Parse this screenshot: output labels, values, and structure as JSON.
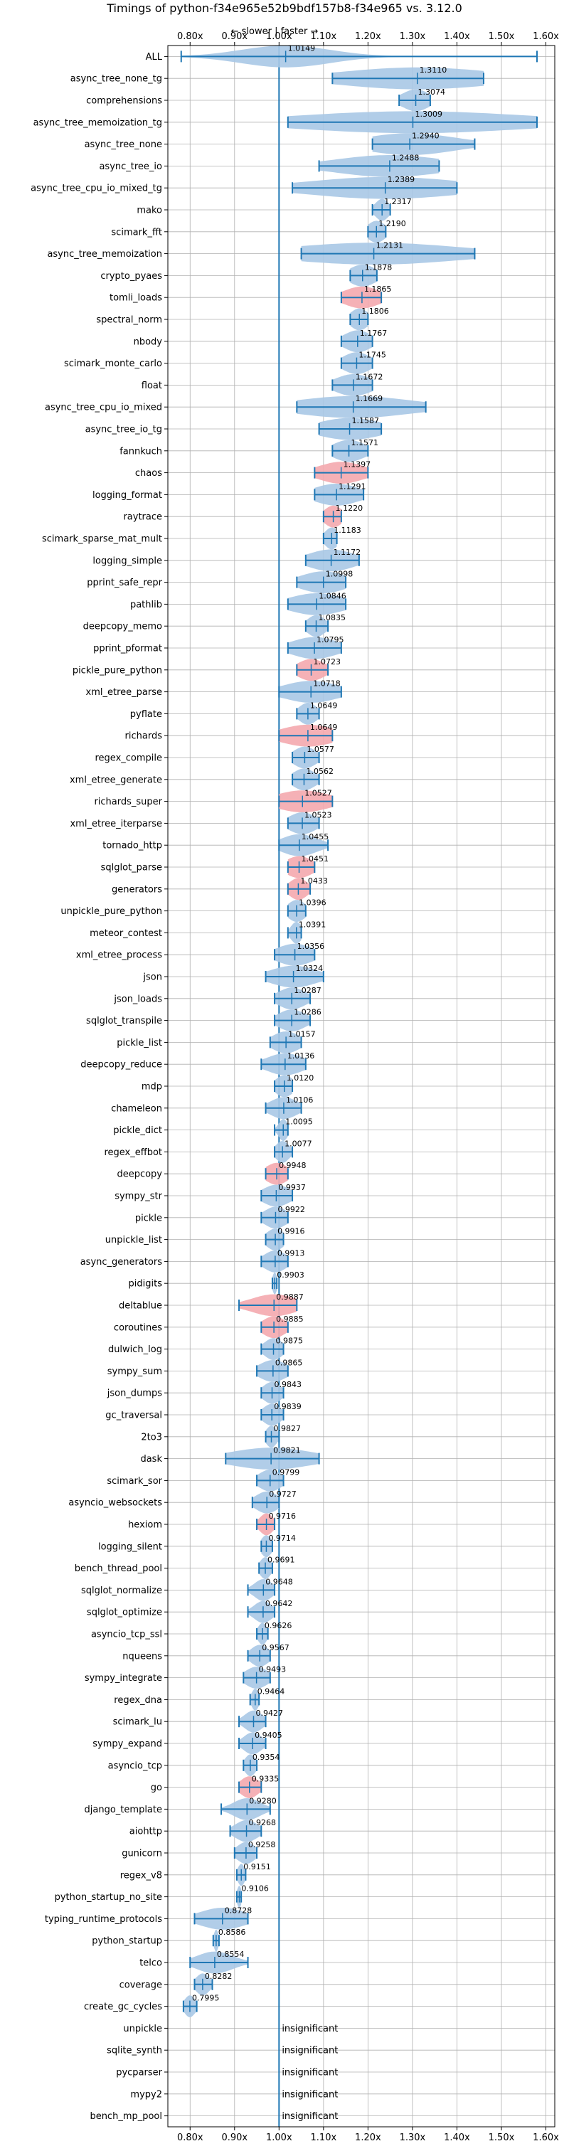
{
  "chart_data": {
    "type": "violin",
    "title": "Timings of python-f34e965e52b9bdf157b8-f34e965 vs. 3.12.0",
    "subtitle": "← slower | faster →",
    "xlim": [
      0.75,
      1.62
    ],
    "xticks": [
      0.8,
      0.9,
      1.0,
      1.1,
      1.2,
      1.3,
      1.4,
      1.5,
      1.6
    ],
    "xtick_labels": [
      "0.80x",
      "0.90x",
      "1.00x",
      "1.10x",
      "1.20x",
      "1.30x",
      "1.40x",
      "1.50x",
      "1.60x"
    ],
    "reference_line": 1.0,
    "grid": true,
    "colors": {
      "faster": "#a8c8e6",
      "slower": "#f4a9ae",
      "errorbar": "#1f77b4",
      "reference": "#1f77b4",
      "grid": "#b0b0b0"
    },
    "insignificant_label": "insignificant",
    "benchmarks": [
      {
        "name": "ALL",
        "value": 1.0149,
        "label": "1.0149",
        "lo": 0.78,
        "hi": 1.58,
        "spread": 0.1,
        "color": "faster"
      },
      {
        "name": "async_tree_none_tg",
        "value": 1.311,
        "label": "1.3110",
        "lo": 1.12,
        "hi": 1.46,
        "spread": 0.17,
        "color": "faster"
      },
      {
        "name": "comprehensions",
        "value": 1.3074,
        "label": "1.3074",
        "lo": 1.27,
        "hi": 1.34,
        "spread": 0.03,
        "color": "faster"
      },
      {
        "name": "async_tree_memoization_tg",
        "value": 1.3009,
        "label": "1.3009",
        "lo": 1.02,
        "hi": 1.58,
        "spread": 0.26,
        "color": "faster"
      },
      {
        "name": "async_tree_none",
        "value": 1.294,
        "label": "1.2940",
        "lo": 1.21,
        "hi": 1.44,
        "spread": 0.1,
        "color": "faster"
      },
      {
        "name": "async_tree_io",
        "value": 1.2488,
        "label": "1.2488",
        "lo": 1.09,
        "hi": 1.36,
        "spread": 0.12,
        "color": "faster"
      },
      {
        "name": "async_tree_cpu_io_mixed_tg",
        "value": 1.2389,
        "label": "1.2389",
        "lo": 1.03,
        "hi": 1.4,
        "spread": 0.17,
        "color": "faster"
      },
      {
        "name": "mako",
        "value": 1.2317,
        "label": "1.2317",
        "lo": 1.21,
        "hi": 1.25,
        "spread": 0.015,
        "color": "faster"
      },
      {
        "name": "scimark_fft",
        "value": 1.219,
        "label": "1.2190",
        "lo": 1.2,
        "hi": 1.24,
        "spread": 0.02,
        "color": "faster"
      },
      {
        "name": "async_tree_memoization",
        "value": 1.2131,
        "label": "1.2131",
        "lo": 1.05,
        "hi": 1.44,
        "spread": 0.19,
        "color": "faster"
      },
      {
        "name": "crypto_pyaes",
        "value": 1.1878,
        "label": "1.1878",
        "lo": 1.16,
        "hi": 1.22,
        "spread": 0.03,
        "color": "faster"
      },
      {
        "name": "tomli_loads",
        "value": 1.1865,
        "label": "1.1865",
        "lo": 1.14,
        "hi": 1.23,
        "spread": 0.04,
        "color": "slower"
      },
      {
        "name": "spectral_norm",
        "value": 1.1806,
        "label": "1.1806",
        "lo": 1.16,
        "hi": 1.2,
        "spread": 0.02,
        "color": "faster"
      },
      {
        "name": "nbody",
        "value": 1.1767,
        "label": "1.1767",
        "lo": 1.14,
        "hi": 1.21,
        "spread": 0.03,
        "color": "faster"
      },
      {
        "name": "scimark_monte_carlo",
        "value": 1.1745,
        "label": "1.1745",
        "lo": 1.14,
        "hi": 1.21,
        "spread": 0.03,
        "color": "faster"
      },
      {
        "name": "float",
        "value": 1.1672,
        "label": "1.1672",
        "lo": 1.12,
        "hi": 1.21,
        "spread": 0.04,
        "color": "faster"
      },
      {
        "name": "async_tree_cpu_io_mixed",
        "value": 1.1669,
        "label": "1.1669",
        "lo": 1.04,
        "hi": 1.33,
        "spread": 0.13,
        "color": "faster"
      },
      {
        "name": "async_tree_io_tg",
        "value": 1.1587,
        "label": "1.1587",
        "lo": 1.09,
        "hi": 1.23,
        "spread": 0.07,
        "color": "faster"
      },
      {
        "name": "fannkuch",
        "value": 1.1571,
        "label": "1.1571",
        "lo": 1.12,
        "hi": 1.2,
        "spread": 0.035,
        "color": "faster"
      },
      {
        "name": "chaos",
        "value": 1.1397,
        "label": "1.1397",
        "lo": 1.08,
        "hi": 1.2,
        "spread": 0.05,
        "color": "slower"
      },
      {
        "name": "logging_format",
        "value": 1.1291,
        "label": "1.1291",
        "lo": 1.08,
        "hi": 1.19,
        "spread": 0.05,
        "color": "faster"
      },
      {
        "name": "raytrace",
        "value": 1.122,
        "label": "1.1220",
        "lo": 1.1,
        "hi": 1.14,
        "spread": 0.02,
        "color": "slower"
      },
      {
        "name": "scimark_sparse_mat_mult",
        "value": 1.1183,
        "label": "1.1183",
        "lo": 1.1,
        "hi": 1.13,
        "spread": 0.015,
        "color": "faster"
      },
      {
        "name": "logging_simple",
        "value": 1.1172,
        "label": "1.1172",
        "lo": 1.06,
        "hi": 1.18,
        "spread": 0.05,
        "color": "faster"
      },
      {
        "name": "pprint_safe_repr",
        "value": 1.0998,
        "label": "1.0998",
        "lo": 1.04,
        "hi": 1.15,
        "spread": 0.05,
        "color": "faster"
      },
      {
        "name": "pathlib",
        "value": 1.0846,
        "label": "1.0846",
        "lo": 1.02,
        "hi": 1.15,
        "spread": 0.06,
        "color": "faster"
      },
      {
        "name": "deepcopy_memo",
        "value": 1.0835,
        "label": "1.0835",
        "lo": 1.06,
        "hi": 1.11,
        "spread": 0.02,
        "color": "faster"
      },
      {
        "name": "pprint_pformat",
        "value": 1.0795,
        "label": "1.0795",
        "lo": 1.02,
        "hi": 1.14,
        "spread": 0.05,
        "color": "faster"
      },
      {
        "name": "pickle_pure_python",
        "value": 1.0723,
        "label": "1.0723",
        "lo": 1.04,
        "hi": 1.11,
        "spread": 0.03,
        "color": "slower"
      },
      {
        "name": "xml_etree_parse",
        "value": 1.0718,
        "label": "1.0718",
        "lo": 1.0,
        "hi": 1.14,
        "spread": 0.06,
        "color": "faster"
      },
      {
        "name": "pyflate",
        "value": 1.0649,
        "label": "1.0649",
        "lo": 1.04,
        "hi": 1.09,
        "spread": 0.02,
        "color": "faster"
      },
      {
        "name": "richards",
        "value": 1.0649,
        "label": "1.0649",
        "lo": 1.0,
        "hi": 1.12,
        "spread": 0.06,
        "color": "slower"
      },
      {
        "name": "regex_compile",
        "value": 1.0577,
        "label": "1.0577",
        "lo": 1.03,
        "hi": 1.09,
        "spread": 0.025,
        "color": "faster"
      },
      {
        "name": "xml_etree_generate",
        "value": 1.0562,
        "label": "1.0562",
        "lo": 1.03,
        "hi": 1.09,
        "spread": 0.025,
        "color": "faster"
      },
      {
        "name": "richards_super",
        "value": 1.0527,
        "label": "1.0527",
        "lo": 1.0,
        "hi": 1.12,
        "spread": 0.06,
        "color": "slower"
      },
      {
        "name": "xml_etree_iterparse",
        "value": 1.0523,
        "label": "1.0523",
        "lo": 1.02,
        "hi": 1.09,
        "spread": 0.03,
        "color": "faster"
      },
      {
        "name": "tornado_http",
        "value": 1.0455,
        "label": "1.0455",
        "lo": 1.0,
        "hi": 1.11,
        "spread": 0.04,
        "color": "faster"
      },
      {
        "name": "sqlglot_parse",
        "value": 1.0451,
        "label": "1.0451",
        "lo": 1.02,
        "hi": 1.08,
        "spread": 0.03,
        "color": "slower"
      },
      {
        "name": "generators",
        "value": 1.0433,
        "label": "1.0433",
        "lo": 1.02,
        "hi": 1.07,
        "spread": 0.02,
        "color": "slower"
      },
      {
        "name": "unpickle_pure_python",
        "value": 1.0396,
        "label": "1.0396",
        "lo": 1.02,
        "hi": 1.06,
        "spread": 0.02,
        "color": "faster"
      },
      {
        "name": "meteor_contest",
        "value": 1.0391,
        "label": "1.0391",
        "lo": 1.02,
        "hi": 1.05,
        "spread": 0.012,
        "color": "faster"
      },
      {
        "name": "xml_etree_process",
        "value": 1.0356,
        "label": "1.0356",
        "lo": 0.99,
        "hi": 1.08,
        "spread": 0.04,
        "color": "faster"
      },
      {
        "name": "json",
        "value": 1.0324,
        "label": "1.0324",
        "lo": 0.97,
        "hi": 1.1,
        "spread": 0.05,
        "color": "faster"
      },
      {
        "name": "json_loads",
        "value": 1.0287,
        "label": "1.0287",
        "lo": 0.99,
        "hi": 1.07,
        "spread": 0.03,
        "color": "faster"
      },
      {
        "name": "sqlglot_transpile",
        "value": 1.0286,
        "label": "1.0286",
        "lo": 0.99,
        "hi": 1.07,
        "spread": 0.03,
        "color": "faster"
      },
      {
        "name": "pickle_list",
        "value": 1.0157,
        "label": "1.0157",
        "lo": 0.98,
        "hi": 1.05,
        "spread": 0.03,
        "color": "faster"
      },
      {
        "name": "deepcopy_reduce",
        "value": 1.0136,
        "label": "1.0136",
        "lo": 0.96,
        "hi": 1.06,
        "spread": 0.04,
        "color": "faster"
      },
      {
        "name": "mdp",
        "value": 1.012,
        "label": "1.0120",
        "lo": 0.99,
        "hi": 1.03,
        "spread": 0.02,
        "color": "faster"
      },
      {
        "name": "chameleon",
        "value": 1.0106,
        "label": "1.0106",
        "lo": 0.97,
        "hi": 1.05,
        "spread": 0.03,
        "color": "faster"
      },
      {
        "name": "pickle_dict",
        "value": 1.0095,
        "label": "1.0095",
        "lo": 0.99,
        "hi": 1.02,
        "spread": 0.01,
        "color": "faster"
      },
      {
        "name": "regex_effbot",
        "value": 1.0077,
        "label": "1.0077",
        "lo": 0.99,
        "hi": 1.03,
        "spread": 0.015,
        "color": "faster"
      },
      {
        "name": "deepcopy",
        "value": 0.9948,
        "label": "0.9948",
        "lo": 0.97,
        "hi": 1.02,
        "spread": 0.025,
        "color": "slower"
      },
      {
        "name": "sympy_str",
        "value": 0.9937,
        "label": "0.9937",
        "lo": 0.96,
        "hi": 1.03,
        "spread": 0.03,
        "color": "faster"
      },
      {
        "name": "pickle",
        "value": 0.9922,
        "label": "0.9922",
        "lo": 0.96,
        "hi": 1.02,
        "spread": 0.025,
        "color": "faster"
      },
      {
        "name": "unpickle_list",
        "value": 0.9916,
        "label": "0.9916",
        "lo": 0.97,
        "hi": 1.01,
        "spread": 0.02,
        "color": "faster"
      },
      {
        "name": "async_generators",
        "value": 0.9913,
        "label": "0.9913",
        "lo": 0.96,
        "hi": 1.02,
        "spread": 0.025,
        "color": "faster"
      },
      {
        "name": "pidigits",
        "value": 0.9903,
        "label": "0.9903",
        "lo": 0.985,
        "hi": 0.995,
        "spread": 0.005,
        "color": "faster"
      },
      {
        "name": "deltablue",
        "value": 0.9887,
        "label": "0.9887",
        "lo": 0.91,
        "hi": 1.04,
        "spread": 0.05,
        "color": "slower"
      },
      {
        "name": "coroutines",
        "value": 0.9885,
        "label": "0.9885",
        "lo": 0.96,
        "hi": 1.02,
        "spread": 0.025,
        "color": "slower"
      },
      {
        "name": "dulwich_log",
        "value": 0.9875,
        "label": "0.9875",
        "lo": 0.96,
        "hi": 1.01,
        "spread": 0.02,
        "color": "faster"
      },
      {
        "name": "sympy_sum",
        "value": 0.9865,
        "label": "0.9865",
        "lo": 0.95,
        "hi": 1.02,
        "spread": 0.03,
        "color": "faster"
      },
      {
        "name": "json_dumps",
        "value": 0.9843,
        "label": "0.9843",
        "lo": 0.96,
        "hi": 1.01,
        "spread": 0.02,
        "color": "faster"
      },
      {
        "name": "gc_traversal",
        "value": 0.9839,
        "label": "0.9839",
        "lo": 0.96,
        "hi": 1.01,
        "spread": 0.02,
        "color": "faster"
      },
      {
        "name": "2to3",
        "value": 0.9827,
        "label": "0.9827",
        "lo": 0.97,
        "hi": 1.0,
        "spread": 0.012,
        "color": "faster"
      },
      {
        "name": "dask",
        "value": 0.9821,
        "label": "0.9821",
        "lo": 0.88,
        "hi": 1.09,
        "spread": 0.09,
        "color": "faster"
      },
      {
        "name": "scimark_sor",
        "value": 0.9799,
        "label": "0.9799",
        "lo": 0.95,
        "hi": 1.01,
        "spread": 0.025,
        "color": "faster"
      },
      {
        "name": "asyncio_websockets",
        "value": 0.9727,
        "label": "0.9727",
        "lo": 0.94,
        "hi": 1.0,
        "spread": 0.025,
        "color": "faster"
      },
      {
        "name": "hexiom",
        "value": 0.9716,
        "label": "0.9716",
        "lo": 0.95,
        "hi": 0.99,
        "spread": 0.015,
        "color": "slower"
      },
      {
        "name": "logging_silent",
        "value": 0.9714,
        "label": "0.9714",
        "lo": 0.96,
        "hi": 0.985,
        "spread": 0.012,
        "color": "faster"
      },
      {
        "name": "bench_thread_pool",
        "value": 0.9691,
        "label": "0.9691",
        "lo": 0.955,
        "hi": 0.985,
        "spread": 0.012,
        "color": "faster"
      },
      {
        "name": "sqlglot_normalize",
        "value": 0.9648,
        "label": "0.9648",
        "lo": 0.93,
        "hi": 0.99,
        "spread": 0.02,
        "color": "faster"
      },
      {
        "name": "sqlglot_optimize",
        "value": 0.9642,
        "label": "0.9642",
        "lo": 0.93,
        "hi": 0.99,
        "spread": 0.02,
        "color": "faster"
      },
      {
        "name": "asyncio_tcp_ssl",
        "value": 0.9626,
        "label": "0.9626",
        "lo": 0.95,
        "hi": 0.975,
        "spread": 0.01,
        "color": "faster"
      },
      {
        "name": "nqueens",
        "value": 0.9567,
        "label": "0.9567",
        "lo": 0.93,
        "hi": 0.98,
        "spread": 0.02,
        "color": "faster"
      },
      {
        "name": "sympy_integrate",
        "value": 0.9493,
        "label": "0.9493",
        "lo": 0.92,
        "hi": 0.98,
        "spread": 0.025,
        "color": "faster"
      },
      {
        "name": "regex_dna",
        "value": 0.9464,
        "label": "0.9464",
        "lo": 0.935,
        "hi": 0.955,
        "spread": 0.008,
        "color": "faster"
      },
      {
        "name": "scimark_lu",
        "value": 0.9427,
        "label": "0.9427",
        "lo": 0.91,
        "hi": 0.97,
        "spread": 0.02,
        "color": "faster"
      },
      {
        "name": "sympy_expand",
        "value": 0.9405,
        "label": "0.9405",
        "lo": 0.91,
        "hi": 0.97,
        "spread": 0.02,
        "color": "faster"
      },
      {
        "name": "asyncio_tcp",
        "value": 0.9354,
        "label": "0.9354",
        "lo": 0.92,
        "hi": 0.95,
        "spread": 0.012,
        "color": "faster"
      },
      {
        "name": "go",
        "value": 0.9335,
        "label": "0.9335",
        "lo": 0.91,
        "hi": 0.96,
        "spread": 0.02,
        "color": "slower"
      },
      {
        "name": "django_template",
        "value": 0.928,
        "label": "0.9280",
        "lo": 0.87,
        "hi": 0.98,
        "spread": 0.03,
        "color": "faster"
      },
      {
        "name": "aiohttp",
        "value": 0.9268,
        "label": "0.9268",
        "lo": 0.89,
        "hi": 0.96,
        "spread": 0.025,
        "color": "faster"
      },
      {
        "name": "gunicorn",
        "value": 0.9258,
        "label": "0.9258",
        "lo": 0.9,
        "hi": 0.95,
        "spread": 0.02,
        "color": "faster"
      },
      {
        "name": "regex_v8",
        "value": 0.9151,
        "label": "0.9151",
        "lo": 0.905,
        "hi": 0.925,
        "spread": 0.008,
        "color": "faster"
      },
      {
        "name": "python_startup_no_site",
        "value": 0.9106,
        "label": "0.9106",
        "lo": 0.905,
        "hi": 0.915,
        "spread": 0.005,
        "color": "faster"
      },
      {
        "name": "typing_runtime_protocols",
        "value": 0.8728,
        "label": "0.8728",
        "lo": 0.81,
        "hi": 0.93,
        "spread": 0.05,
        "color": "faster"
      },
      {
        "name": "python_startup",
        "value": 0.8586,
        "label": "0.8586",
        "lo": 0.852,
        "hi": 0.865,
        "spread": 0.005,
        "color": "faster"
      },
      {
        "name": "telco",
        "value": 0.8554,
        "label": "0.8554",
        "lo": 0.8,
        "hi": 0.93,
        "spread": 0.04,
        "color": "faster"
      },
      {
        "name": "coverage",
        "value": 0.8282,
        "label": "0.8282",
        "lo": 0.81,
        "hi": 0.85,
        "spread": 0.015,
        "color": "faster"
      },
      {
        "name": "create_gc_cycles",
        "value": 0.7995,
        "label": "0.7995",
        "lo": 0.785,
        "hi": 0.815,
        "spread": 0.012,
        "color": "faster"
      },
      {
        "name": "unpickle",
        "value": null,
        "label": "insignificant"
      },
      {
        "name": "sqlite_synth",
        "value": null,
        "label": "insignificant"
      },
      {
        "name": "pycparser",
        "value": null,
        "label": "insignificant"
      },
      {
        "name": "mypy2",
        "value": null,
        "label": "insignificant"
      },
      {
        "name": "bench_mp_pool",
        "value": null,
        "label": "insignificant"
      }
    ]
  }
}
